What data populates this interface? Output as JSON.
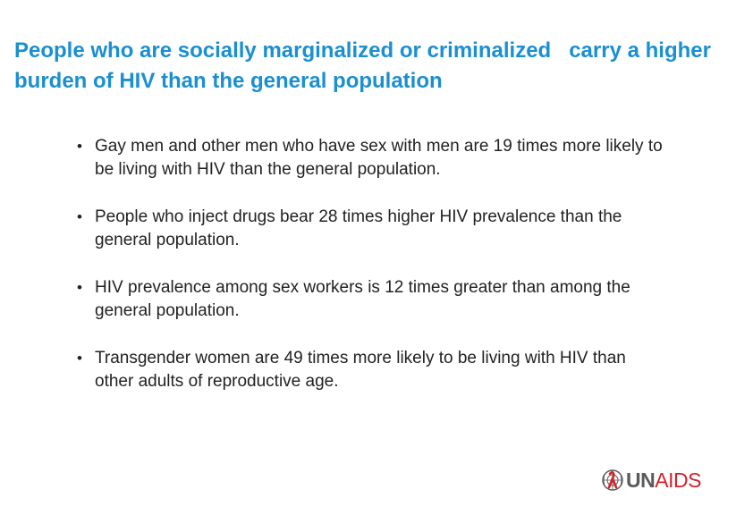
{
  "slide": {
    "title": "People who are socially marginalized or criminalized   carry a higher burden of HIV than the general population",
    "bullets": [
      "Gay men and other men who have sex with men are 19 times more likely to be living with HIV than the general population.",
      "People who inject drugs bear 28 times higher HIV prevalence than the general population.",
      "HIV prevalence among sex workers is 12 times greater than among the general population.",
      "Transgender women are 49 times more likely to be living with HIV than other adults of reproductive age."
    ]
  },
  "logo": {
    "text_un": "UN",
    "text_aids": "AIDS",
    "icon": "un-emblem-ribbon-icon"
  },
  "colors": {
    "title": "#1A8FD1",
    "body_text": "#222222",
    "logo_gray": "#5a5a5a",
    "logo_red": "#D2232A"
  }
}
